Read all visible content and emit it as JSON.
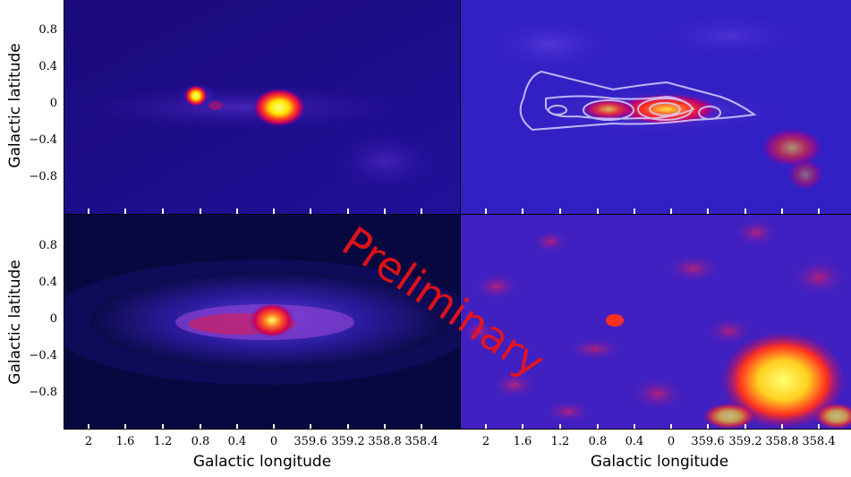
{
  "figure": {
    "ylabel_top": "Galactic latitude",
    "ylabel_bottom": "Galactic latitude",
    "xlabel_left": "Galactic longitude",
    "xlabel_right": "Galactic longitude",
    "watermark": "Preliminary",
    "yticks": [
      "0.8",
      "0.4",
      "0",
      "−0.4",
      "−0.8"
    ],
    "xticks": [
      "2",
      "1.6",
      "1.2",
      "0.8",
      "0.4",
      "0",
      "359.6",
      "359.2",
      "358.8",
      "358.4"
    ]
  }
}
